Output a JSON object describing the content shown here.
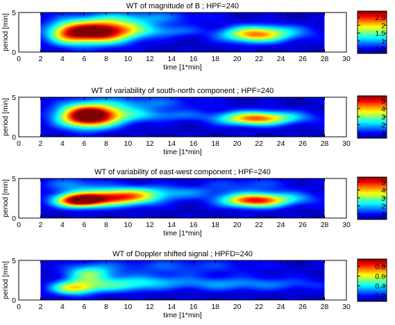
{
  "colormap": [
    "#00008f",
    "#0000ff",
    "#0080ff",
    "#00ffff",
    "#80ff80",
    "#ffff00",
    "#ff8000",
    "#ff0000",
    "#800000"
  ],
  "chart_data": [
    {
      "type": "heatmap",
      "title": "WT of magnitude of B ; HPF=240",
      "xlabel": "time [1*min]",
      "ylabel": "period [min]",
      "xlim": [
        0,
        30
      ],
      "ylim": [
        0,
        5
      ],
      "data_x_range": [
        2,
        28
      ],
      "xticks": [
        0,
        2,
        4,
        6,
        8,
        10,
        12,
        14,
        16,
        18,
        20,
        22,
        24,
        26,
        28,
        30
      ],
      "yticks": [
        0,
        5
      ],
      "colorbar": {
        "range": [
          0.2,
          2.9
        ],
        "ticks": [
          0.5,
          1,
          1.5,
          2,
          2.5
        ],
        "tick_labels": [
          "0.5",
          "1",
          "1.5",
          "2",
          "2.5"
        ]
      },
      "blobs": [
        {
          "x": 7.0,
          "y": 2.5,
          "sx": 2.4,
          "sy": 1.0,
          "amp": 2.5
        },
        {
          "x": 9.5,
          "y": 3.0,
          "sx": 2.5,
          "sy": 0.8,
          "amp": 0.6
        },
        {
          "x": 4.5,
          "y": 2.3,
          "sx": 1.2,
          "sy": 1.0,
          "amp": 0.8
        },
        {
          "x": 21.5,
          "y": 2.2,
          "sx": 2.0,
          "sy": 0.7,
          "amp": 1.6
        },
        {
          "x": 24.0,
          "y": 2.5,
          "sx": 2.5,
          "sy": 0.7,
          "amp": 0.5
        },
        {
          "x": 14.0,
          "y": 2.6,
          "sx": 2.0,
          "sy": 0.5,
          "amp": 0.4
        },
        {
          "x": 11.0,
          "y": 4.4,
          "sx": 4.0,
          "sy": 0.7,
          "amp": 0.5
        }
      ]
    },
    {
      "type": "heatmap",
      "title": "WT of variability of south-north component ; HPF=240",
      "xlabel": "time [1*min]",
      "ylabel": "period [min]",
      "xlim": [
        0,
        30
      ],
      "ylim": [
        0,
        5
      ],
      "data_x_range": [
        2,
        28
      ],
      "xticks": [
        0,
        2,
        4,
        6,
        8,
        10,
        12,
        14,
        16,
        18,
        20,
        22,
        24,
        26,
        28,
        30
      ],
      "yticks": [
        0,
        5
      ],
      "colorbar": {
        "range": [
          0.3,
          5.6
        ],
        "ticks": [
          1,
          2,
          3,
          4,
          5
        ],
        "tick_labels": [
          "1",
          "2",
          "3",
          "4",
          "5"
        ]
      },
      "blobs": [
        {
          "x": 6.3,
          "y": 2.6,
          "sx": 1.8,
          "sy": 1.0,
          "amp": 5.5
        },
        {
          "x": 9.0,
          "y": 2.8,
          "sx": 2.4,
          "sy": 0.8,
          "amp": 1.4
        },
        {
          "x": 21.5,
          "y": 2.3,
          "sx": 2.2,
          "sy": 0.6,
          "amp": 3.5
        },
        {
          "x": 24.5,
          "y": 2.5,
          "sx": 2.5,
          "sy": 0.6,
          "amp": 0.8
        },
        {
          "x": 14.0,
          "y": 2.7,
          "sx": 2.5,
          "sy": 0.5,
          "amp": 0.8
        },
        {
          "x": 11.0,
          "y": 4.3,
          "sx": 4.0,
          "sy": 0.7,
          "amp": 0.9
        }
      ]
    },
    {
      "type": "heatmap",
      "title": "WT of variability of east-west component ; HPF=240",
      "xlabel": "time [1*min]",
      "ylabel": "period [min]",
      "xlim": [
        0,
        30
      ],
      "ylim": [
        0,
        5
      ],
      "data_x_range": [
        2,
        28
      ],
      "xticks": [
        0,
        2,
        4,
        6,
        8,
        10,
        12,
        14,
        16,
        18,
        20,
        22,
        24,
        26,
        28,
        30
      ],
      "yticks": [
        0,
        5
      ],
      "colorbar": {
        "range": [
          0.3,
          5.6
        ],
        "ticks": [
          1,
          2,
          3,
          4,
          5
        ],
        "tick_labels": [
          "1",
          "2",
          "3",
          "4",
          "5"
        ]
      },
      "blobs": [
        {
          "x": 5.5,
          "y": 2.2,
          "sx": 1.5,
          "sy": 0.6,
          "amp": 4.8
        },
        {
          "x": 8.5,
          "y": 2.6,
          "sx": 2.2,
          "sy": 0.7,
          "amp": 3.5
        },
        {
          "x": 11.0,
          "y": 2.9,
          "sx": 2.0,
          "sy": 0.8,
          "amp": 1.5
        },
        {
          "x": 21.5,
          "y": 2.2,
          "sx": 2.0,
          "sy": 0.6,
          "amp": 4.0
        },
        {
          "x": 24.5,
          "y": 2.5,
          "sx": 2.5,
          "sy": 0.6,
          "amp": 1.0
        },
        {
          "x": 15.0,
          "y": 3.2,
          "sx": 2.5,
          "sy": 0.6,
          "amp": 0.9
        },
        {
          "x": 5.0,
          "y": 4.2,
          "sx": 2.0,
          "sy": 0.7,
          "amp": 1.0
        },
        {
          "x": 21.0,
          "y": 4.2,
          "sx": 3.0,
          "sy": 0.7,
          "amp": 0.7
        }
      ]
    },
    {
      "type": "heatmap",
      "title": "WT of Doppler shifted signal ; HPFD=240",
      "xlabel": "time [1*min]",
      "ylabel": "period [min]",
      "xlim": [
        0,
        30
      ],
      "ylim": [
        0,
        5
      ],
      "data_x_range": [
        2,
        28
      ],
      "xticks": [
        0,
        2,
        4,
        6,
        8,
        10,
        12,
        14,
        16,
        18,
        20,
        22,
        24,
        26,
        28,
        30
      ],
      "yticks": [
        0,
        5
      ],
      "colorbar": {
        "range": [
          0.08,
          0.95
        ],
        "ticks": [
          0.2,
          0.4,
          0.6,
          0.8
        ],
        "tick_labels": [
          "0.2",
          "0.4",
          "0.6",
          "0.8"
        ]
      },
      "blobs": [
        {
          "x": 5.0,
          "y": 1.5,
          "sx": 1.4,
          "sy": 0.6,
          "amp": 0.45
        },
        {
          "x": 6.5,
          "y": 3.2,
          "sx": 1.5,
          "sy": 0.8,
          "amp": 0.35
        },
        {
          "x": 9.0,
          "y": 1.8,
          "sx": 2.5,
          "sy": 0.6,
          "amp": 0.25
        },
        {
          "x": 12.0,
          "y": 2.4,
          "sx": 2.5,
          "sy": 0.6,
          "amp": 0.15
        },
        {
          "x": 18.0,
          "y": 2.0,
          "sx": 3.0,
          "sy": 0.6,
          "amp": 0.15
        },
        {
          "x": 24.0,
          "y": 2.0,
          "sx": 3.5,
          "sy": 0.6,
          "amp": 0.12
        },
        {
          "x": 14.0,
          "y": 4.2,
          "sx": 6.0,
          "sy": 0.8,
          "amp": 0.12
        }
      ]
    }
  ]
}
